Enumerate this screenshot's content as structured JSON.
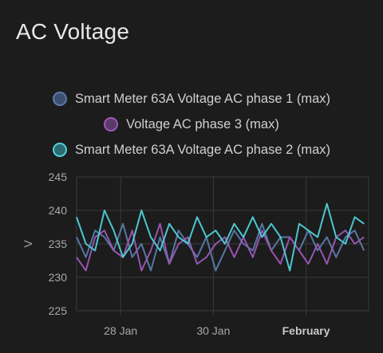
{
  "card": {
    "title": "AC Voltage"
  },
  "chart_data": {
    "type": "line",
    "title": "AC Voltage",
    "xlabel": "",
    "ylabel": "V",
    "ylim": [
      225,
      245
    ],
    "yticks": [
      225,
      230,
      235,
      240,
      245
    ],
    "xlim": [
      0,
      6.3
    ],
    "xticks": [
      {
        "x": 0.95,
        "label": "28 Jan",
        "bold": false
      },
      {
        "x": 2.95,
        "label": "30 Jan",
        "bold": false
      },
      {
        "x": 4.95,
        "label": "February",
        "bold": true
      }
    ],
    "grid": true,
    "legend_position": "top",
    "series": [
      {
        "name": "Smart Meter 63A Voltage AC phase 1 (max)",
        "color": "#5b7bac",
        "fill": "#3d4f6e",
        "x": [
          0.0,
          0.2,
          0.4,
          0.6,
          0.8,
          1.0,
          1.2,
          1.4,
          1.6,
          1.8,
          2.0,
          2.2,
          2.4,
          2.6,
          2.8,
          3.0,
          3.2,
          3.4,
          3.6,
          3.8,
          4.0,
          4.2,
          4.4,
          4.6,
          4.8,
          5.0,
          5.2,
          5.4,
          5.6,
          5.8,
          6.0,
          6.2
        ],
        "values": [
          236,
          233,
          237,
          236,
          234,
          238,
          233,
          235,
          231,
          236,
          232,
          237,
          235,
          233,
          236,
          231,
          234,
          237,
          235,
          234,
          238,
          234,
          236,
          236,
          234,
          237,
          234,
          236,
          233,
          236,
          237,
          234
        ]
      },
      {
        "name": "Voltage AC phase 3 (max)",
        "color": "#9b59b6",
        "fill": "#5a3a68",
        "x": [
          0.0,
          0.2,
          0.4,
          0.6,
          0.8,
          1.0,
          1.2,
          1.4,
          1.6,
          1.8,
          2.0,
          2.2,
          2.4,
          2.6,
          2.8,
          3.0,
          3.2,
          3.4,
          3.6,
          3.8,
          4.0,
          4.2,
          4.4,
          4.6,
          4.8,
          5.0,
          5.2,
          5.4,
          5.6,
          5.8,
          6.0,
          6.2
        ],
        "values": [
          233,
          231,
          236,
          237,
          234,
          233,
          237,
          231,
          234,
          238,
          232,
          235,
          236,
          232,
          233,
          235,
          236,
          233,
          236,
          233,
          237,
          234,
          232,
          236,
          234,
          232,
          235,
          232,
          236,
          237,
          235,
          236
        ]
      },
      {
        "name": "Smart Meter 63A Voltage AC phase 2 (max)",
        "color": "#4fd1d9",
        "fill": "#2e6b70",
        "x": [
          0.0,
          0.2,
          0.4,
          0.6,
          0.8,
          1.0,
          1.2,
          1.4,
          1.6,
          1.8,
          2.0,
          2.2,
          2.4,
          2.6,
          2.8,
          3.0,
          3.2,
          3.4,
          3.6,
          3.8,
          4.0,
          4.2,
          4.4,
          4.6,
          4.8,
          5.0,
          5.2,
          5.4,
          5.6,
          5.8,
          6.0,
          6.2
        ],
        "values": [
          239,
          235,
          234,
          240,
          237,
          233,
          235,
          240,
          236,
          234,
          238,
          236,
          235,
          239,
          236,
          237,
          235,
          238,
          236,
          239,
          236,
          238,
          236,
          231,
          238,
          237,
          236,
          241,
          236,
          235,
          239,
          238
        ]
      }
    ]
  }
}
